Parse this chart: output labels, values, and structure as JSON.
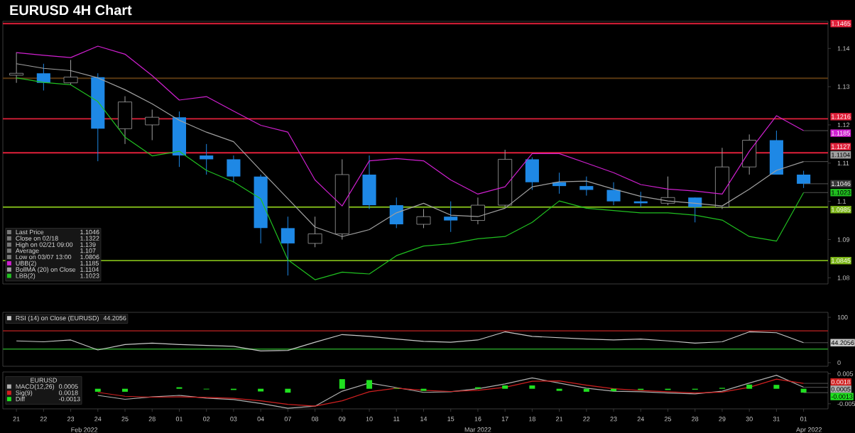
{
  "chart_data": [
    {
      "type": "candlestick",
      "title": "EURUSD 4H Chart",
      "categories": [
        "21",
        "22",
        "23",
        "24",
        "25",
        "28",
        "01",
        "02",
        "03",
        "04",
        "07",
        "08",
        "09",
        "10",
        "11",
        "14",
        "15",
        "16",
        "17",
        "18",
        "21",
        "22",
        "23",
        "24",
        "25",
        "28",
        "29",
        "30",
        "31",
        "01"
      ],
      "ohlc": [
        [
          1.133,
          1.139,
          1.131,
          1.1335
        ],
        [
          1.1335,
          1.136,
          1.129,
          1.131
        ],
        [
          1.131,
          1.137,
          1.1305,
          1.1325
        ],
        [
          1.1325,
          1.1335,
          1.1105,
          1.119
        ],
        [
          1.119,
          1.1275,
          1.115,
          1.126
        ],
        [
          1.12,
          1.124,
          1.116,
          1.122
        ],
        [
          1.122,
          1.1235,
          1.109,
          1.112
        ],
        [
          1.112,
          1.115,
          1.107,
          1.111
        ],
        [
          1.111,
          1.112,
          1.105,
          1.1065
        ],
        [
          1.1065,
          1.107,
          1.089,
          1.093
        ],
        [
          1.093,
          1.096,
          1.0806,
          1.089
        ],
        [
          1.089,
          1.096,
          1.088,
          1.0915
        ],
        [
          1.0915,
          1.111,
          1.09,
          1.107
        ],
        [
          1.107,
          1.112,
          1.098,
          1.099
        ],
        [
          1.099,
          1.101,
          1.093,
          1.094
        ],
        [
          1.094,
          1.098,
          1.093,
          1.096
        ],
        [
          1.096,
          1.1,
          1.092,
          1.095
        ],
        [
          1.095,
          1.101,
          1.094,
          1.099
        ],
        [
          1.099,
          1.1135,
          1.0985,
          1.111
        ],
        [
          1.111,
          1.1115,
          1.103,
          1.105
        ],
        [
          1.105,
          1.1075,
          1.102,
          1.104
        ],
        [
          1.104,
          1.1065,
          1.1015,
          1.103
        ],
        [
          1.103,
          1.105,
          1.099,
          1.1
        ],
        [
          1.1,
          1.1025,
          1.0985,
          1.0995
        ],
        [
          1.0995,
          1.1065,
          1.099,
          1.101
        ],
        [
          1.101,
          1.101,
          1.0945,
          1.0985
        ],
        [
          1.0985,
          1.114,
          1.098,
          1.109
        ],
        [
          1.109,
          1.1175,
          1.107,
          1.116
        ],
        [
          1.116,
          1.1185,
          1.107,
          1.107
        ],
        [
          1.107,
          1.108,
          1.1035,
          1.1046
        ]
      ],
      "colors": [
        "#a0a0a0",
        "#1e88e5",
        "#a0a0a0",
        "#1e88e5",
        "#a0a0a0",
        "#a0a0a0",
        "#1e88e5",
        "#1e88e5",
        "#1e88e5",
        "#1e88e5",
        "#1e88e5",
        "#a0a0a0",
        "#a0a0a0",
        "#1e88e5",
        "#1e88e5",
        "#a0a0a0",
        "#1e88e5",
        "#a0a0a0",
        "#a0a0a0",
        "#1e88e5",
        "#1e88e5",
        "#1e88e5",
        "#1e88e5",
        "#1e88e5",
        "#a0a0a0",
        "#1e88e5",
        "#a0a0a0",
        "#a0a0a0",
        "#1e88e5",
        "#1e88e5"
      ],
      "series": [
        {
          "name": "UBB(2)",
          "type": "line",
          "color": "#d020d0",
          "values": [
            1.1389,
            1.1382,
            1.1376,
            1.1406,
            1.1385,
            1.1329,
            1.1265,
            1.1274,
            1.1236,
            1.1199,
            1.1181,
            1.1056,
            1.0988,
            1.1106,
            1.1112,
            1.1106,
            1.1056,
            1.1019,
            1.1038,
            1.1125,
            1.1125,
            1.11,
            1.1075,
            1.1044,
            1.1032,
            1.1027,
            1.1019,
            1.1131,
            1.1224,
            1.1185
          ]
        },
        {
          "name": "BollMA (20)  on Close",
          "type": "line",
          "color": "#a0a0a0",
          "values": [
            1.136,
            1.1348,
            1.1342,
            1.1323,
            1.1292,
            1.1255,
            1.1212,
            1.1181,
            1.1156,
            1.1081,
            1.1007,
            1.0933,
            1.0908,
            1.0926,
            1.097,
            1.0995,
            1.0964,
            1.096,
            1.0982,
            1.1038,
            1.1051,
            1.1053,
            1.1032,
            1.1013,
            1.1001,
            1.0995,
            1.0988,
            1.1032,
            1.1081,
            1.1104
          ]
        },
        {
          "name": "LBB(2)",
          "type": "line",
          "color": "#20c020",
          "values": [
            1.1323,
            1.1311,
            1.1305,
            1.1261,
            1.1168,
            1.1119,
            1.1131,
            1.1081,
            1.1051,
            1.1007,
            1.0847,
            1.0795,
            1.0815,
            1.081,
            1.0858,
            1.0883,
            1.0889,
            1.0902,
            1.0908,
            1.0945,
            1.1001,
            1.0982,
            1.0976,
            1.097,
            1.097,
            1.0964,
            1.0951,
            1.0908,
            1.0896,
            1.1023
          ]
        }
      ],
      "ylim": [
        1.0784,
        1.1471
      ],
      "yticks": [
        1.08,
        1.09,
        1.1,
        1.11,
        1.12,
        1.13,
        1.14
      ],
      "tick_labels": "y",
      "legend": "bottom left",
      "ref_lines": [
        {
          "axis": "y",
          "value": 1.1465,
          "label": "1.1465",
          "color": "#e0203a"
        },
        {
          "axis": "y",
          "value": 1.1322,
          "color": "#5a3812"
        },
        {
          "axis": "y",
          "value": 1.1216,
          "label": "1.1216",
          "color": "#e0203a"
        },
        {
          "axis": "y",
          "value": 1.1127,
          "label": "1.1127",
          "color": "#e0203a"
        },
        {
          "axis": "y",
          "value": 1.0985,
          "label": "1.0985",
          "color": "#7cb518"
        },
        {
          "axis": "y",
          "value": 1.0845,
          "label": "1.0845",
          "color": "#7cb518"
        }
      ],
      "annotations": [
        "Last Price",
        "1.1046",
        "Close on 02/18",
        "1.1322",
        "High on 02/21 09:00",
        "1.139",
        "Average",
        "1.107",
        "Low on 03/07 13:00",
        "1.0806",
        "1.1185",
        "1.1104",
        "1.1023",
        "1.1185",
        "1.1104",
        "1.1046",
        "1.1023"
      ]
    },
    {
      "type": "line",
      "categories": [
        "21",
        "22",
        "23",
        "24",
        "25",
        "28",
        "01",
        "02",
        "03",
        "04",
        "07",
        "08",
        "09",
        "10",
        "11",
        "14",
        "15",
        "16",
        "17",
        "18",
        "21",
        "22",
        "23",
        "24",
        "25",
        "28",
        "29",
        "30",
        "31",
        "01"
      ],
      "series": [
        {
          "name": "RSI (14)  on Close (EURUSD)",
          "color": "#c8c8c8",
          "values": [
            48,
            46,
            50,
            28,
            40,
            43,
            40,
            38,
            36,
            26,
            27,
            45,
            62,
            58,
            52,
            47,
            45,
            50,
            68,
            58,
            55,
            52,
            50,
            52,
            48,
            43,
            46,
            68,
            66,
            44
          ]
        }
      ],
      "ylim": [
        -8,
        111
      ],
      "yticks": [
        0,
        100
      ],
      "tick_labels": "y",
      "legend": "top left",
      "ref_lines": [
        {
          "axis": "y",
          "value": 70,
          "color": "#8b1a1a"
        },
        {
          "axis": "y",
          "value": 30,
          "color": "#1f7a1f"
        }
      ],
      "annotations": [
        "44.2056",
        "44.2056"
      ]
    },
    {
      "type": "line",
      "legend_title": "EURUSD",
      "categories": [
        "21",
        "22",
        "23",
        "24",
        "25",
        "28",
        "01",
        "02",
        "03",
        "04",
        "07",
        "08",
        "09",
        "10",
        "11",
        "14",
        "15",
        "16",
        "17",
        "18",
        "21",
        "22",
        "23",
        "24",
        "25",
        "28",
        "29",
        "30",
        "31",
        "01"
      ],
      "series": [
        {
          "name": "MACD(12,26)",
          "color": "#b0b0b0",
          "values": [
            null,
            null,
            null,
            -0.0022,
            -0.0035,
            -0.0027,
            -0.0022,
            -0.0031,
            -0.0036,
            -0.0049,
            -0.0065,
            -0.0058,
            -0.0008,
            0.0019,
            0.0004,
            -0.0012,
            -0.001,
            0.0,
            0.0016,
            0.0036,
            0.0019,
            0.0002,
            -0.0008,
            -0.001,
            -0.0014,
            -0.0017,
            -0.0008,
            0.0019,
            0.0045,
            0.0005
          ]
        },
        {
          "name": "Sig(9)",
          "color": "#d02020",
          "values": [
            null,
            null,
            null,
            -0.0012,
            -0.0025,
            -0.0028,
            -0.0027,
            -0.0029,
            -0.0032,
            -0.004,
            -0.0052,
            -0.0058,
            -0.004,
            -0.001,
            0.0002,
            -0.0005,
            -0.0009,
            -0.0005,
            0.0005,
            0.0025,
            0.0026,
            0.0012,
            0.0,
            -0.0006,
            -0.001,
            -0.0014,
            -0.0011,
            0.0005,
            0.0032,
            0.0018
          ]
        },
        {
          "name": "Diff",
          "type": "bar",
          "color": "#20e020",
          "values": [
            null,
            null,
            null,
            -0.001,
            -0.001,
            null,
            0.0005,
            -0.0002,
            -0.0004,
            -0.0009,
            -0.0013,
            0.0,
            0.0032,
            0.0029,
            0.0002,
            -0.0007,
            null,
            0.0005,
            0.0011,
            0.0011,
            -0.0007,
            -0.001,
            -0.0008,
            -0.0004,
            -0.0004,
            -0.0003,
            0.0003,
            0.0014,
            0.0013,
            -0.0013
          ]
        }
      ],
      "ylim": [
        -0.0067,
        0.0056
      ],
      "yticks": [
        -0.005,
        0.005
      ],
      "legend": "left",
      "annotations": [
        "0.0005",
        "0.0018",
        "-0.0013",
        "0.0018",
        "0.0005",
        "-0.0013",
        "Feb 2022",
        "Mar 2022",
        "Apr 2022"
      ]
    }
  ]
}
